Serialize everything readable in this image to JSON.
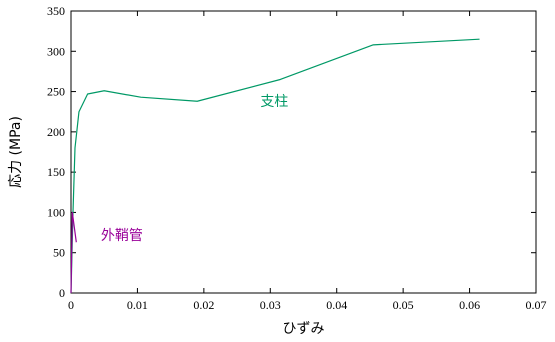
{
  "chart_data": {
    "type": "line",
    "xlabel": "ひずみ",
    "ylabel": "応力 (MPa)",
    "xlim": [
      0,
      0.07
    ],
    "ylim": [
      0,
      350
    ],
    "x_ticks": [
      "0",
      "0.01",
      "0.02",
      "0.03",
      "0.04",
      "0.05",
      "0.06",
      "0.07"
    ],
    "y_ticks": [
      "0",
      "50",
      "100",
      "150",
      "200",
      "250",
      "300",
      "350"
    ],
    "grid": false,
    "series": [
      {
        "name": "支柱",
        "color": "#009966",
        "points": [
          [
            0,
            0
          ],
          [
            0.0003,
            100
          ],
          [
            0.0006,
            180
          ],
          [
            0.0012,
            225
          ],
          [
            0.0025,
            247
          ],
          [
            0.005,
            251
          ],
          [
            0.0105,
            243
          ],
          [
            0.019,
            238
          ],
          [
            0.0315,
            265
          ],
          [
            0.0455,
            308
          ],
          [
            0.0615,
            315
          ]
        ]
      },
      {
        "name": "外鞘管",
        "color": "#990099",
        "points": [
          [
            0,
            0
          ],
          [
            0.0002,
            100
          ],
          [
            0.0008,
            63
          ]
        ]
      }
    ],
    "annotations": [
      {
        "text": "支柱",
        "x": 0.0285,
        "y": 232,
        "series": 0
      },
      {
        "text": "外鞘管",
        "x": 0.0045,
        "y": 66,
        "series": 1
      }
    ]
  }
}
